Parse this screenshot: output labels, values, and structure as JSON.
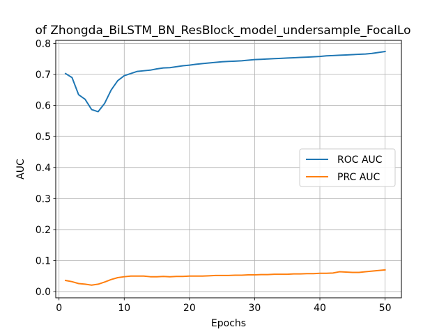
{
  "chart_data": {
    "type": "line",
    "title": "of Zhongda_BiLSTM_BN_ResBlock_model_undersample_FocalLo",
    "xlabel": "Epochs",
    "ylabel": "AUC",
    "xlim": [
      -0.5,
      52.5
    ],
    "ylim": [
      -0.02,
      0.81
    ],
    "xticks": [
      0,
      10,
      20,
      30,
      40,
      50
    ],
    "yticks": [
      0.0,
      0.1,
      0.2,
      0.3,
      0.4,
      0.5,
      0.6,
      0.7,
      0.8
    ],
    "grid": true,
    "legend_position": "center-right",
    "x": [
      1,
      2,
      3,
      4,
      5,
      6,
      7,
      8,
      9,
      10,
      11,
      12,
      13,
      14,
      15,
      16,
      17,
      18,
      19,
      20,
      21,
      22,
      23,
      24,
      25,
      26,
      27,
      28,
      29,
      30,
      31,
      32,
      33,
      34,
      35,
      36,
      37,
      38,
      39,
      40,
      41,
      42,
      43,
      44,
      45,
      46,
      47,
      48,
      49,
      50
    ],
    "series": [
      {
        "name": "ROC AUC",
        "color": "#1f77b4",
        "values": [
          0.703,
          0.69,
          0.635,
          0.62,
          0.587,
          0.58,
          0.607,
          0.65,
          0.68,
          0.696,
          0.703,
          0.71,
          0.712,
          0.714,
          0.718,
          0.721,
          0.722,
          0.725,
          0.728,
          0.73,
          0.733,
          0.735,
          0.737,
          0.739,
          0.741,
          0.742,
          0.743,
          0.744,
          0.746,
          0.748,
          0.749,
          0.75,
          0.751,
          0.752,
          0.753,
          0.754,
          0.755,
          0.756,
          0.757,
          0.758,
          0.76,
          0.761,
          0.762,
          0.763,
          0.764,
          0.765,
          0.766,
          0.768,
          0.771,
          0.774
        ]
      },
      {
        "name": "PRC AUC",
        "color": "#ff7f0e",
        "values": [
          0.036,
          0.032,
          0.026,
          0.024,
          0.021,
          0.024,
          0.031,
          0.039,
          0.045,
          0.048,
          0.05,
          0.05,
          0.05,
          0.048,
          0.048,
          0.049,
          0.048,
          0.049,
          0.049,
          0.05,
          0.05,
          0.05,
          0.051,
          0.052,
          0.052,
          0.052,
          0.053,
          0.053,
          0.054,
          0.054,
          0.055,
          0.055,
          0.056,
          0.056,
          0.056,
          0.057,
          0.057,
          0.058,
          0.058,
          0.059,
          0.059,
          0.06,
          0.064,
          0.063,
          0.062,
          0.062,
          0.064,
          0.066,
          0.068,
          0.07
        ]
      }
    ]
  }
}
